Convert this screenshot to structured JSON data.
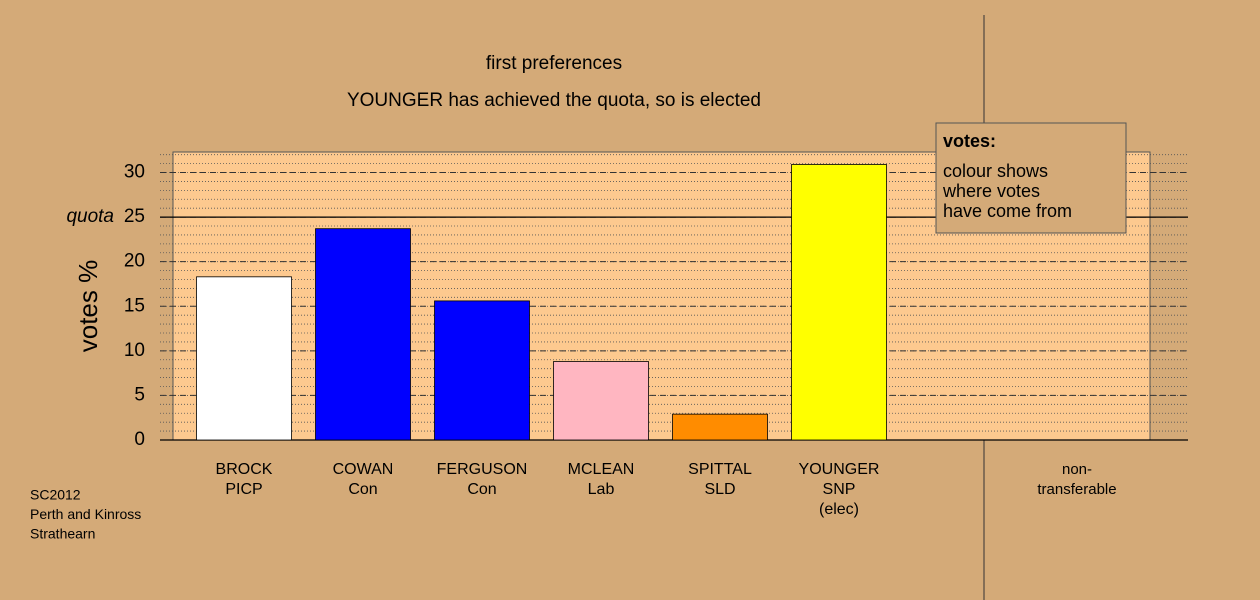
{
  "chart_data": {
    "type": "bar",
    "title": "first preferences",
    "subtitle": "YOUNGER has achieved the quota, so is elected",
    "y_label": "votes %",
    "categories": [
      [
        "BROCK",
        "PICP"
      ],
      [
        "COWAN",
        "Con"
      ],
      [
        "FERGUSON",
        "Con"
      ],
      [
        "MCLEAN",
        "Lab"
      ],
      [
        "SPITTAL",
        "SLD"
      ],
      [
        "YOUNGER",
        "SNP",
        "(elec)"
      ]
    ],
    "extra_category": [
      "non-",
      "transferable"
    ],
    "values": [
      18.3,
      23.7,
      15.6,
      8.8,
      2.9,
      30.9
    ],
    "colors": [
      "#ffffff",
      "#0000ff",
      "#0000ff",
      "#ffb6c1",
      "#ff8c00",
      "#ffff00"
    ],
    "ylim": [
      0,
      32.3
    ],
    "yticks": [
      0,
      5,
      10,
      15,
      20,
      25,
      30
    ],
    "quota": 25,
    "quota_label": "quota",
    "legend": {
      "title": "votes:",
      "lines": [
        "colour shows",
        "where votes",
        "have come from"
      ]
    },
    "footnote": [
      "SC2012",
      "Perth and Kinross",
      "Strathearn"
    ]
  }
}
